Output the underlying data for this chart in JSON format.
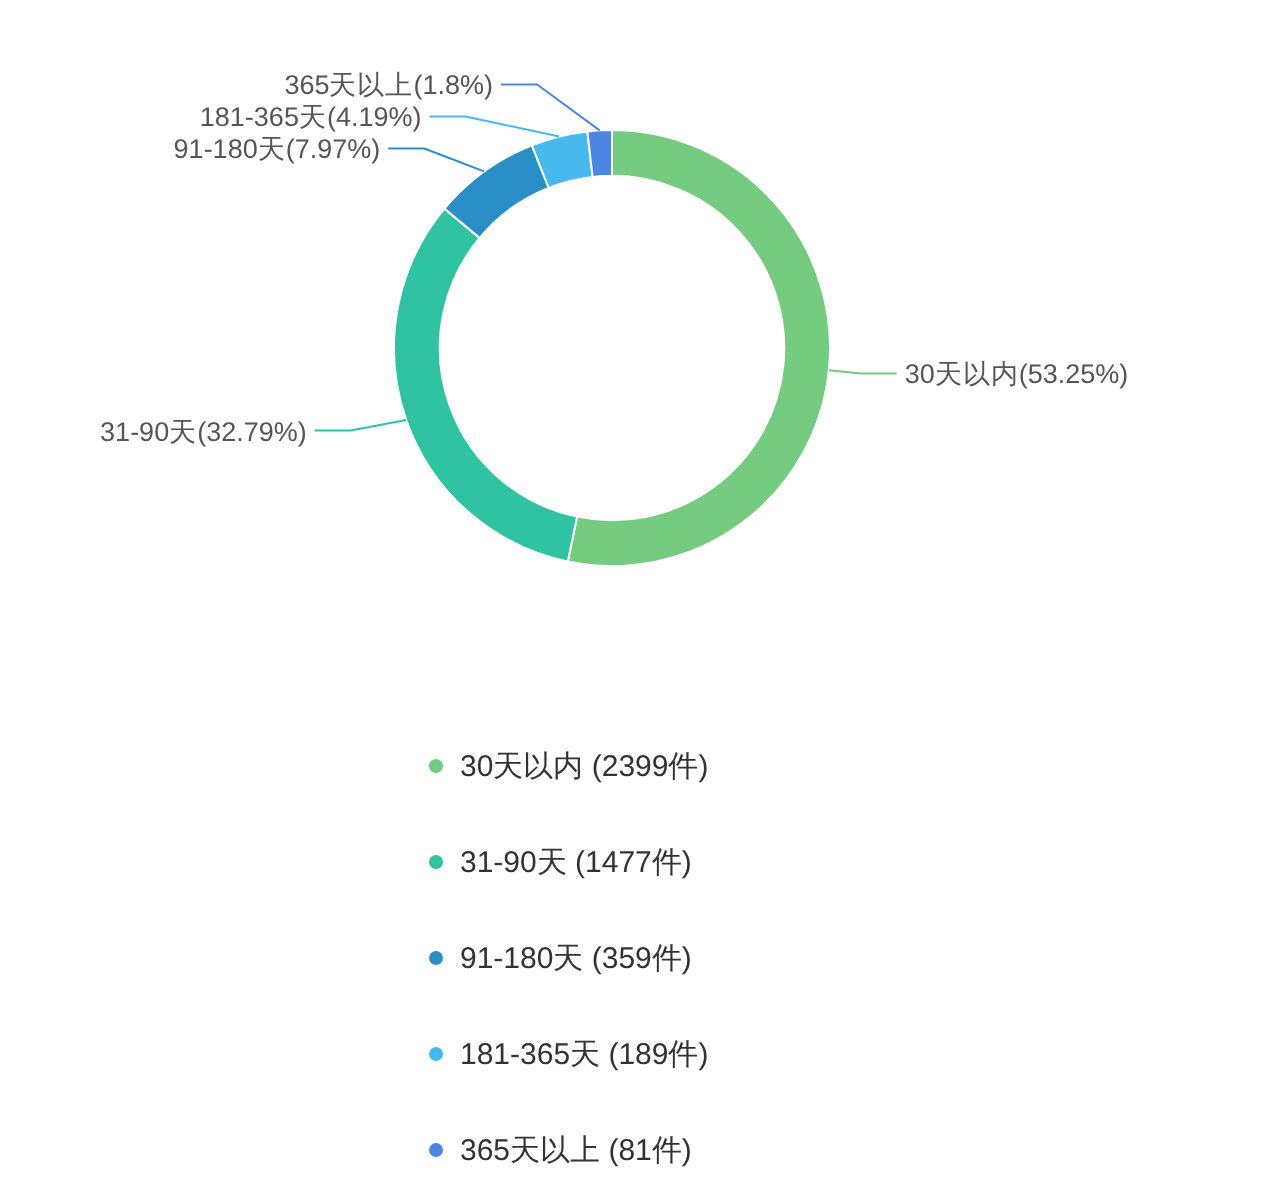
{
  "chart_data": {
    "type": "donut",
    "categories": [
      "30天以内 (2399件)",
      "31-90天 (1477件)",
      "91-180天 (359件)",
      "181-365天 (189件)",
      "365天以上 (81件)"
    ],
    "values": [
      53.25,
      32.79,
      7.97,
      4.19,
      1.8
    ],
    "value_labels": [
      "30天以内(53.25%)",
      "31-90天(32.79%)",
      "91-180天(7.97%)",
      "181-365天(4.19%)",
      "365天以上(1.8%)"
    ],
    "colors": [
      "#75cb80",
      "#30c3a2",
      "#2a8fc6",
      "#47b9ee",
      "#4c86e2"
    ],
    "legend": "bottom"
  }
}
